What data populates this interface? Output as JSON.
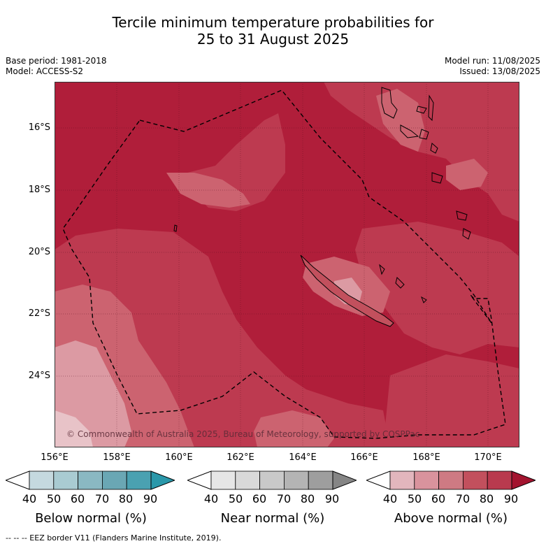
{
  "title": {
    "line1": "Tercile minimum temperature probabilities for",
    "line2": "25 to 31 August 2025"
  },
  "meta": {
    "base_period": "Base period: 1981-2018",
    "model": "Model: ACCESS-S2",
    "model_run": "Model run: 11/08/2025",
    "issued": "Issued: 13/08/2025"
  },
  "map": {
    "lat_ticks": [
      "16°S",
      "18°S",
      "20°S",
      "22°S",
      "24°S"
    ],
    "lon_ticks": [
      "156°E",
      "158°E",
      "160°E",
      "162°E",
      "164°E",
      "166°E",
      "168°E",
      "170°E"
    ],
    "copyright": "© Commonwealth of Australia 2025, Bureau of Meteorology, supported by COSPPac",
    "eez_line_style": "dashed",
    "land": [
      "New Caledonia",
      "Vanuatu"
    ]
  },
  "colorbars": [
    {
      "title": "Below normal (%)",
      "labels": [
        "40",
        "50",
        "60",
        "70",
        "80",
        "90"
      ],
      "colors": [
        "#ffffff",
        "#c5d9df",
        "#a9cbd2",
        "#8ab8c2",
        "#6aa7b4",
        "#4aa1b1",
        "#2a98aa"
      ]
    },
    {
      "title": "Near normal (%)",
      "labels": [
        "40",
        "50",
        "60",
        "70",
        "80",
        "90"
      ],
      "colors": [
        "#ffffff",
        "#e6e6e6",
        "#d9d9d9",
        "#c9c9c9",
        "#b4b4b4",
        "#9e9e9e",
        "#858585"
      ]
    },
    {
      "title": "Above normal (%)",
      "labels": [
        "40",
        "50",
        "60",
        "70",
        "80",
        "90"
      ],
      "colors": [
        "#ffffff",
        "#e2b6bd",
        "#d9939d",
        "#ce7a83",
        "#c2505d",
        "#b93a4e",
        "#a3142f"
      ]
    }
  ],
  "footnote": "--  --  -- EEZ border V11 (Flanders Marine Institute, 2019)."
}
